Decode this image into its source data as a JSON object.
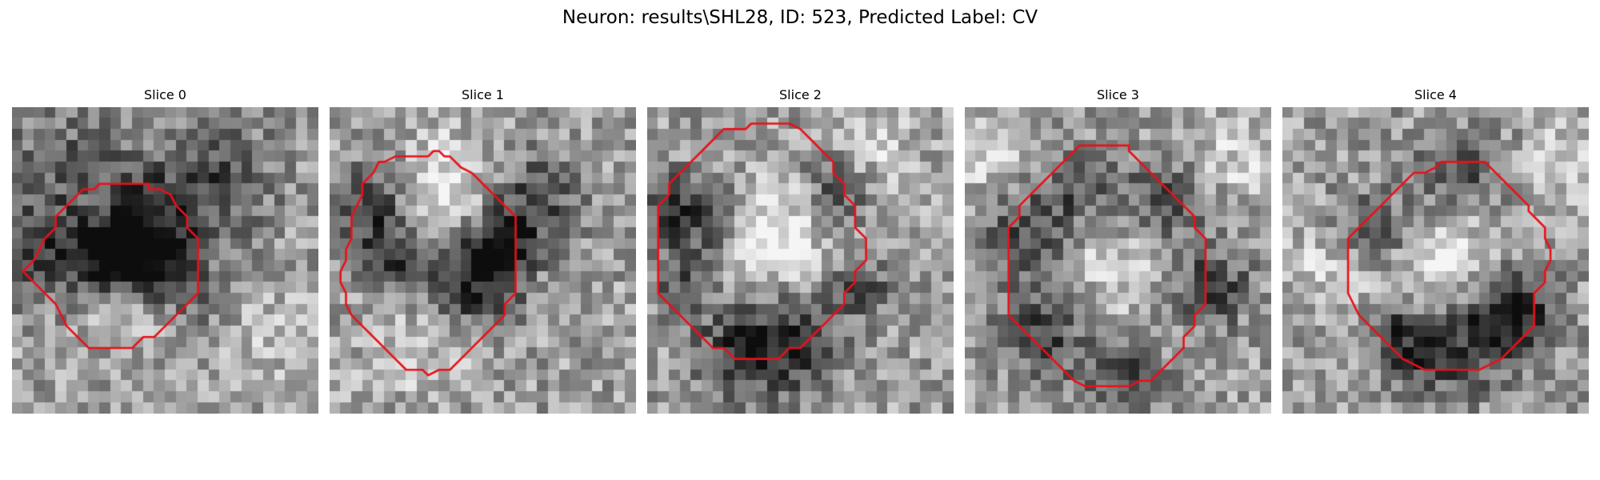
{
  "figure": {
    "title": "Neuron: results\\SHL28, ID: 523, Predicted Label: CV",
    "panels": [
      {
        "title": "Slice 0",
        "seed": 11,
        "contour": [
          [
            12.5,
            7
          ],
          [
            12.5,
            7.5
          ],
          [
            13.5,
            7.5
          ],
          [
            14.5,
            8
          ],
          [
            15,
            9
          ],
          [
            16,
            10
          ],
          [
            16,
            11
          ],
          [
            17,
            12
          ],
          [
            17,
            13
          ],
          [
            17,
            14
          ],
          [
            17,
            15
          ],
          [
            17,
            16
          ],
          [
            17,
            17
          ],
          [
            16,
            18
          ],
          [
            15,
            19
          ],
          [
            14,
            20
          ],
          [
            13,
            21
          ],
          [
            12,
            21
          ],
          [
            11,
            22
          ],
          [
            10,
            22
          ],
          [
            9,
            22
          ],
          [
            8,
            22
          ],
          [
            7,
            22
          ],
          [
            6,
            21
          ],
          [
            5,
            20
          ],
          [
            4.5,
            19
          ],
          [
            4,
            18
          ],
          [
            3,
            17
          ],
          [
            2,
            16
          ],
          [
            1,
            15
          ],
          [
            2,
            14
          ],
          [
            2.5,
            13
          ],
          [
            3,
            12
          ],
          [
            4,
            11
          ],
          [
            4,
            10
          ],
          [
            5,
            9
          ],
          [
            6,
            8
          ],
          [
            6.5,
            7.5
          ],
          [
            7.5,
            7.5
          ],
          [
            8,
            7
          ],
          [
            9,
            7
          ],
          [
            10,
            7
          ],
          [
            11,
            7
          ]
        ],
        "dark": [
          [
            10,
            13,
            2.5,
            0.55
          ],
          [
            12,
            10,
            3.5,
            0.3
          ],
          [
            7,
            14,
            2.5,
            0.35
          ],
          [
            14,
            14,
            2.5,
            0.35
          ],
          [
            4,
            5,
            4,
            0.25
          ],
          [
            18,
            6,
            4,
            0.3
          ],
          [
            1,
            13,
            3,
            0.35
          ],
          [
            17,
            19,
            3,
            0.2
          ]
        ],
        "light": [
          [
            10,
            17,
            3,
            0.2
          ],
          [
            20,
            20,
            4,
            0.15
          ]
        ]
      },
      {
        "title": "Slice 1",
        "seed": 23,
        "contour": [
          [
            9,
            4.5
          ],
          [
            9.5,
            4
          ],
          [
            10,
            4
          ],
          [
            10.5,
            4.5
          ],
          [
            11,
            4.5
          ],
          [
            12,
            5.5
          ],
          [
            13,
            6
          ],
          [
            14,
            7
          ],
          [
            15,
            8
          ],
          [
            16,
            9
          ],
          [
            17,
            10
          ],
          [
            17,
            11
          ],
          [
            17,
            12
          ],
          [
            17,
            13
          ],
          [
            17,
            14
          ],
          [
            17,
            15
          ],
          [
            17,
            16
          ],
          [
            17,
            17
          ],
          [
            16,
            18
          ],
          [
            16,
            19
          ],
          [
            15,
            20
          ],
          [
            14,
            21
          ],
          [
            13,
            22
          ],
          [
            12,
            23
          ],
          [
            11,
            24
          ],
          [
            10,
            24
          ],
          [
            9,
            24.5
          ],
          [
            8.5,
            24
          ],
          [
            7,
            24
          ],
          [
            6,
            23
          ],
          [
            5,
            22
          ],
          [
            4,
            21
          ],
          [
            3,
            20
          ],
          [
            2,
            19
          ],
          [
            1.5,
            18
          ],
          [
            1.5,
            17
          ],
          [
            1,
            16
          ],
          [
            1,
            15
          ],
          [
            1.5,
            14
          ],
          [
            1.5,
            13
          ],
          [
            2,
            12
          ],
          [
            2,
            11
          ],
          [
            2,
            10
          ],
          [
            2.5,
            9
          ],
          [
            3,
            8
          ],
          [
            3,
            7
          ],
          [
            4,
            6
          ],
          [
            4.5,
            5
          ],
          [
            5,
            5
          ],
          [
            6,
            4.5
          ],
          [
            7,
            4.5
          ],
          [
            8,
            4.5
          ]
        ],
        "dark": [
          [
            4,
            9,
            3,
            0.45
          ],
          [
            6,
            14,
            2.5,
            0.35
          ],
          [
            13,
            14,
            3,
            0.4
          ],
          [
            15,
            12,
            2,
            0.35
          ],
          [
            18,
            8,
            3,
            0.35
          ],
          [
            12,
            17,
            3,
            0.25
          ]
        ],
        "light": [
          [
            10,
            7,
            3.5,
            0.3
          ],
          [
            8,
            10,
            3,
            0.2
          ],
          [
            8,
            20,
            4,
            0.2
          ]
        ]
      },
      {
        "title": "Slice 2",
        "seed": 37,
        "contour": [
          [
            9,
            2
          ],
          [
            9.5,
            1.5
          ],
          [
            11,
            1.5
          ],
          [
            12,
            1.5
          ],
          [
            13,
            1.5
          ],
          [
            14,
            2
          ],
          [
            15,
            3
          ],
          [
            16,
            4
          ],
          [
            17,
            5
          ],
          [
            17,
            6
          ],
          [
            18,
            7
          ],
          [
            18,
            8
          ],
          [
            19,
            9
          ],
          [
            19,
            10
          ],
          [
            19,
            11
          ],
          [
            20,
            12
          ],
          [
            20,
            13
          ],
          [
            20,
            14
          ],
          [
            19,
            15
          ],
          [
            19,
            16
          ],
          [
            18,
            17
          ],
          [
            18,
            18
          ],
          [
            17,
            19
          ],
          [
            16,
            20
          ],
          [
            15,
            21
          ],
          [
            14,
            22
          ],
          [
            13,
            22
          ],
          [
            12,
            23
          ],
          [
            11,
            23
          ],
          [
            10,
            23
          ],
          [
            9,
            23
          ],
          [
            8,
            23
          ],
          [
            7,
            22
          ],
          [
            6,
            22
          ],
          [
            5,
            21
          ],
          [
            4,
            20
          ],
          [
            3,
            19
          ],
          [
            2,
            18
          ],
          [
            1,
            17
          ],
          [
            1,
            16
          ],
          [
            1,
            15
          ],
          [
            1,
            14
          ],
          [
            1,
            13
          ],
          [
            1,
            12
          ],
          [
            1,
            11
          ],
          [
            1,
            10
          ],
          [
            1,
            9
          ],
          [
            2,
            8
          ],
          [
            2,
            7
          ],
          [
            3,
            6
          ],
          [
            4,
            5
          ],
          [
            5,
            4
          ],
          [
            6,
            3
          ],
          [
            7,
            2
          ],
          [
            8,
            2
          ]
        ],
        "dark": [
          [
            2,
            9,
            2.5,
            0.35
          ],
          [
            8,
            22,
            3,
            0.4
          ],
          [
            13,
            21,
            3,
            0.4
          ],
          [
            17,
            7,
            2.5,
            0.35
          ],
          [
            19,
            16,
            1.5,
            0.5
          ],
          [
            3,
            15,
            2,
            0.3
          ],
          [
            6,
            10,
            2,
            0.25
          ]
        ],
        "light": [
          [
            12,
            10,
            3,
            0.25
          ],
          [
            10,
            13,
            3,
            0.2
          ],
          [
            20,
            4,
            3,
            0.2
          ]
        ]
      },
      {
        "title": "Slice 3",
        "seed": 53,
        "contour": [
          [
            10,
            4
          ],
          [
            10.5,
            3.5
          ],
          [
            11.5,
            3.5
          ],
          [
            12.5,
            3.5
          ],
          [
            13.5,
            3.5
          ],
          [
            14.5,
            3.5
          ],
          [
            15,
            3.5
          ],
          [
            15,
            4
          ],
          [
            16,
            5
          ],
          [
            17,
            6
          ],
          [
            18,
            7
          ],
          [
            19,
            8
          ],
          [
            20,
            9
          ],
          [
            21,
            10
          ],
          [
            21,
            11
          ],
          [
            22,
            12
          ],
          [
            22,
            13
          ],
          [
            22,
            14
          ],
          [
            22,
            15
          ],
          [
            22,
            16
          ],
          [
            22,
            17
          ],
          [
            22,
            18
          ],
          [
            21,
            19
          ],
          [
            21,
            20
          ],
          [
            20,
            21
          ],
          [
            20,
            22
          ],
          [
            19,
            23
          ],
          [
            18,
            24
          ],
          [
            17,
            25
          ],
          [
            16,
            25
          ],
          [
            15,
            25.5
          ],
          [
            14,
            25.5
          ],
          [
            13,
            25.5
          ],
          [
            12,
            25.5
          ],
          [
            11,
            25.5
          ],
          [
            10,
            25
          ],
          [
            9,
            24
          ],
          [
            8,
            23
          ],
          [
            7,
            22
          ],
          [
            6,
            21
          ],
          [
            5,
            20
          ],
          [
            4,
            19
          ],
          [
            4,
            18
          ],
          [
            4,
            17
          ],
          [
            4,
            16
          ],
          [
            4,
            15
          ],
          [
            4,
            14
          ],
          [
            4,
            13
          ],
          [
            4,
            12
          ],
          [
            4,
            11
          ],
          [
            5,
            10
          ],
          [
            5,
            9
          ],
          [
            6,
            8
          ],
          [
            7,
            7
          ],
          [
            8,
            6
          ],
          [
            9,
            5
          ]
        ],
        "dark": [
          [
            5,
            11,
            3,
            0.35
          ],
          [
            7,
            20,
            3,
            0.35
          ],
          [
            10,
            7,
            2.5,
            0.3
          ],
          [
            18,
            8,
            3,
            0.3
          ],
          [
            22,
            16,
            2.5,
            0.4
          ],
          [
            14,
            24,
            2.5,
            0.35
          ]
        ],
        "light": [
          [
            13,
            14,
            4,
            0.2
          ],
          [
            2,
            4,
            3,
            0.2
          ],
          [
            24,
            4,
            3,
            0.2
          ]
        ]
      },
      {
        "title": "Slice 4",
        "seed": 71,
        "contour": [
          [
            14,
            5.5
          ],
          [
            14.5,
            5
          ],
          [
            15.5,
            5
          ],
          [
            16.5,
            5
          ],
          [
            17.5,
            5
          ],
          [
            18.5,
            5
          ],
          [
            19.5,
            6
          ],
          [
            20.5,
            7
          ],
          [
            21.5,
            8
          ],
          [
            22.5,
            9
          ],
          [
            22.5,
            9.5
          ],
          [
            23,
            10
          ],
          [
            24,
            11
          ],
          [
            24,
            12
          ],
          [
            24.5,
            13
          ],
          [
            24.5,
            14
          ],
          [
            24,
            15
          ],
          [
            24,
            16
          ],
          [
            23,
            17
          ],
          [
            23,
            18
          ],
          [
            23,
            19
          ],
          [
            23,
            20
          ],
          [
            22,
            21
          ],
          [
            21,
            22
          ],
          [
            20,
            23
          ],
          [
            19,
            23.5
          ],
          [
            18,
            24
          ],
          [
            17,
            24
          ],
          [
            16,
            24
          ],
          [
            15,
            24
          ],
          [
            14,
            24
          ],
          [
            13,
            24
          ],
          [
            12,
            23.5
          ],
          [
            11,
            23
          ],
          [
            10,
            22
          ],
          [
            9,
            21
          ],
          [
            8,
            20
          ],
          [
            7,
            19
          ],
          [
            6.5,
            18
          ],
          [
            6,
            17
          ],
          [
            6,
            16
          ],
          [
            6,
            15
          ],
          [
            6,
            14
          ],
          [
            6,
            13
          ],
          [
            6,
            12
          ],
          [
            7,
            11
          ],
          [
            8,
            10
          ],
          [
            9,
            9
          ],
          [
            10,
            8
          ],
          [
            11,
            7
          ],
          [
            12,
            6
          ],
          [
            13,
            6
          ]
        ],
        "dark": [
          [
            8,
            11,
            2.5,
            0.35
          ],
          [
            19,
            20,
            3,
            0.45
          ],
          [
            21,
            17,
            2.5,
            0.4
          ],
          [
            13,
            22,
            3,
            0.35
          ],
          [
            10,
            20,
            2,
            0.3
          ],
          [
            16,
            6,
            3,
            0.3
          ]
        ],
        "light": [
          [
            15,
            14,
            4,
            0.3
          ],
          [
            4,
            14,
            3,
            0.2
          ],
          [
            26,
            5,
            3,
            0.2
          ]
        ]
      }
    ]
  }
}
